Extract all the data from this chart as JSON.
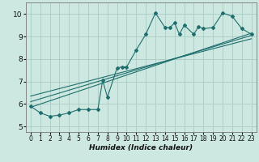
{
  "title": "",
  "xlabel": "Humidex (Indice chaleur)",
  "ylabel": "",
  "bg_color": "#cde8e0",
  "line_color": "#1e6e6e",
  "grid_color": "#aaccc4",
  "xlim": [
    -0.5,
    23.5
  ],
  "ylim": [
    4.75,
    10.5
  ],
  "xticks": [
    0,
    1,
    2,
    3,
    4,
    5,
    6,
    7,
    8,
    9,
    10,
    11,
    12,
    13,
    14,
    15,
    16,
    17,
    18,
    19,
    20,
    21,
    22,
    23
  ],
  "yticks": [
    5,
    6,
    7,
    8,
    9,
    10
  ],
  "main_x": [
    0,
    1,
    2,
    3,
    4,
    5,
    6,
    7,
    7.5,
    8,
    9,
    9.5,
    10,
    11,
    12,
    13,
    14,
    14.5,
    15,
    15.5,
    16,
    17,
    17.5,
    18,
    19,
    20,
    21,
    22,
    23
  ],
  "main_y": [
    5.9,
    5.6,
    5.45,
    5.5,
    5.6,
    5.75,
    5.75,
    5.75,
    7.05,
    6.3,
    7.6,
    7.65,
    7.65,
    8.4,
    9.1,
    10.05,
    9.4,
    9.4,
    9.6,
    9.1,
    9.5,
    9.1,
    9.45,
    9.35,
    9.4,
    10.05,
    9.9,
    9.35,
    9.1
  ],
  "line1_x": [
    0,
    23
  ],
  "line1_y": [
    5.85,
    9.15
  ],
  "line2_x": [
    0,
    23
  ],
  "line2_y": [
    6.1,
    9.05
  ],
  "line3_x": [
    0,
    23
  ],
  "line3_y": [
    6.35,
    8.9
  ],
  "xlabel_fontsize": 6.5,
  "tick_fontsize_x": 5.5,
  "tick_fontsize_y": 6.5
}
